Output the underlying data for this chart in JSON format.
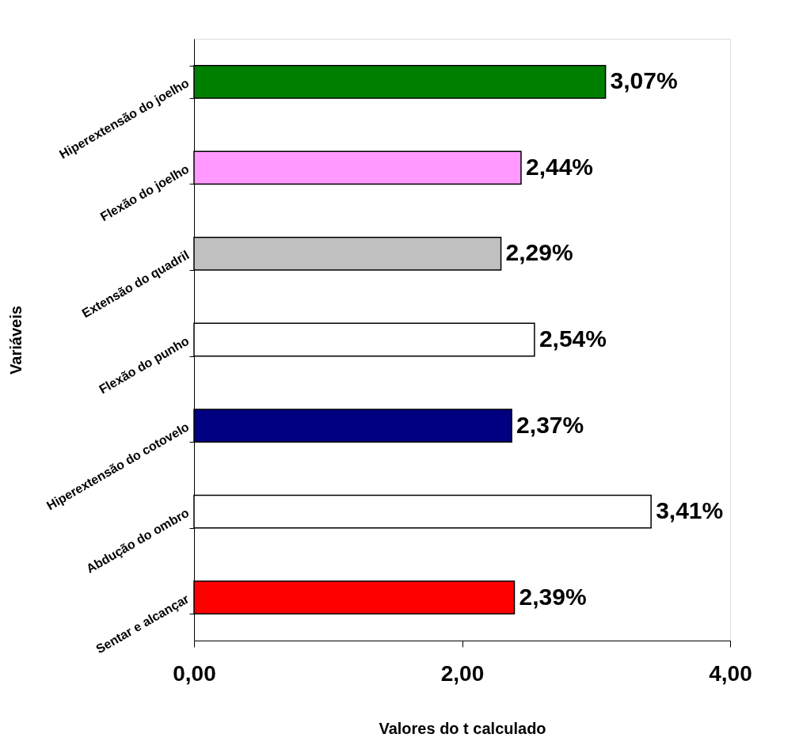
{
  "chart_data": {
    "type": "bar",
    "orientation": "horizontal",
    "xlabel": "Valores do t calculado",
    "ylabel": "Variáveis",
    "categories": [
      "Hiperextensão do joelho",
      "Flexão do joelho",
      "Extensão do quadril",
      "Flexão do punho",
      "Hiperextensão do cotovelo",
      "Abdução do ombro",
      "Sentar e alcançar"
    ],
    "values": [
      3.07,
      2.44,
      2.29,
      2.54,
      2.37,
      3.41,
      2.39
    ],
    "colors": [
      "#008000",
      "#ff99ff",
      "#c0c0c0",
      "#ffffff",
      "#000080",
      "#ffffff",
      "#ff0000"
    ],
    "value_labels": [
      "3,07%",
      "2,44%",
      "2,29%",
      "2,54%",
      "2,37%",
      "3,41%",
      "2,39%"
    ],
    "xlim": [
      0,
      4
    ],
    "xticks": [
      {
        "value": 0,
        "label": "0,00"
      },
      {
        "value": 2,
        "label": "2,00"
      },
      {
        "value": 4,
        "label": "4,00"
      }
    ],
    "grid": false,
    "legend": false
  }
}
